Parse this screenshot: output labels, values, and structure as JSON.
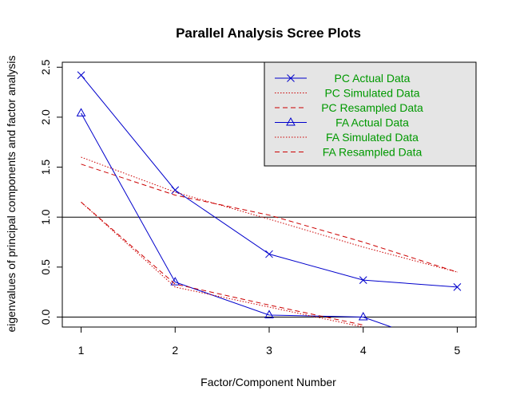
{
  "chart_data": {
    "type": "line",
    "title": "Parallel Analysis Scree Plots",
    "xlabel": "Factor/Component Number",
    "ylabel": "eigenvalues of principal components and factor analysis",
    "xlim": [
      0.8,
      5.2
    ],
    "ylim": [
      -0.1,
      2.55
    ],
    "x_ticks": [
      1,
      2,
      3,
      4,
      5
    ],
    "y_ticks": [
      0.0,
      0.5,
      1.0,
      1.5,
      2.0,
      2.5
    ],
    "y_tick_labels": [
      "0.0",
      "0.5",
      "1.0",
      "1.5",
      "2.0",
      "2.5"
    ],
    "reference_lines": [
      1.0,
      0.0
    ],
    "legend_position": "top-right",
    "legend_background": "#e5e5e5",
    "series": [
      {
        "name": "PC  Actual Data",
        "color": "#0000cc",
        "style": "solid",
        "marker": "x",
        "x": [
          1,
          2,
          3,
          4,
          5
        ],
        "y": [
          2.42,
          1.27,
          0.63,
          0.37,
          0.3
        ]
      },
      {
        "name": "PC  Simulated Data",
        "color": "#cc0000",
        "style": "dotted",
        "marker": "",
        "x": [
          1,
          2,
          3,
          4,
          5
        ],
        "y": [
          1.6,
          1.25,
          0.98,
          0.7,
          0.45
        ]
      },
      {
        "name": "PC  Resampled Data",
        "color": "#cc0000",
        "style": "dashed",
        "marker": "",
        "x": [
          1,
          2,
          3,
          4,
          5
        ],
        "y": [
          1.53,
          1.22,
          1.02,
          0.75,
          0.45
        ]
      },
      {
        "name": "FA  Actual Data",
        "color": "#0000cc",
        "style": "solid",
        "marker": "triangle",
        "x": [
          1,
          2,
          3,
          4,
          4.3
        ],
        "y": [
          2.04,
          0.35,
          0.02,
          0.0,
          -0.1
        ]
      },
      {
        "name": "FA  Simulated Data",
        "color": "#cc0000",
        "style": "dotted",
        "marker": "",
        "x": [
          1,
          2,
          3,
          4
        ],
        "y": [
          1.15,
          0.3,
          0.1,
          -0.1
        ]
      },
      {
        "name": "FA  Resampled Data",
        "color": "#cc0000",
        "style": "dashed",
        "marker": "",
        "x": [
          1,
          2,
          3,
          4
        ],
        "y": [
          1.15,
          0.33,
          0.12,
          -0.08
        ]
      }
    ],
    "legend_text_color": "#009900"
  }
}
